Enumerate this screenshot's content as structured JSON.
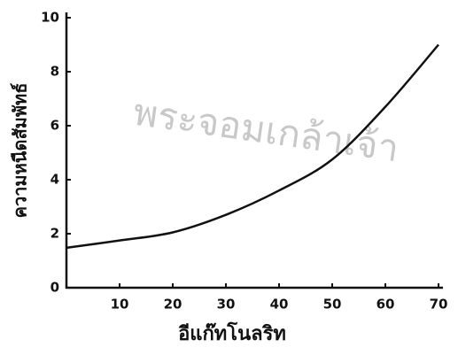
{
  "chart_data": {
    "type": "line",
    "xlabel": "อีแก๊ทโนลริท",
    "ylabel": "ความหนืดสัมพัทธ์",
    "watermark": "พระจอมเกล้าเจ้า",
    "x": [
      0,
      10,
      20,
      30,
      40,
      50,
      60,
      70
    ],
    "values": [
      1.48,
      1.75,
      2.05,
      2.7,
      3.6,
      4.75,
      6.7,
      9.0
    ],
    "color": "#111111",
    "xlim": [
      0,
      70
    ],
    "xticks": [
      10,
      20,
      30,
      40,
      50,
      60,
      70
    ],
    "ylim": [
      0,
      10
    ],
    "yticks": [
      0,
      2,
      4,
      6,
      8,
      10
    ]
  }
}
